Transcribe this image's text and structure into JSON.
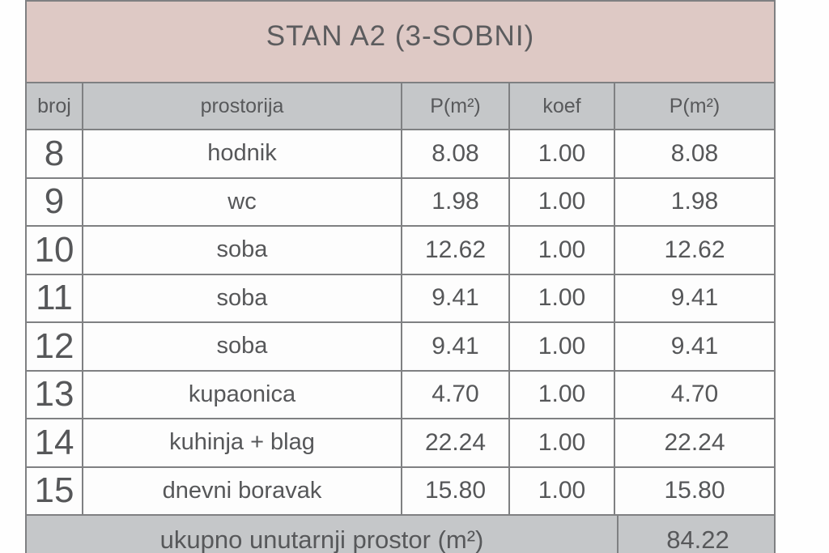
{
  "title": "STAN A2 (3-SOBNI)",
  "columns": [
    "broj",
    "prostorija",
    "P(m²)",
    "koef",
    "P(m²)"
  ],
  "rows": [
    [
      "8",
      "hodnik",
      "8.08",
      "1.00",
      "8.08"
    ],
    [
      "9",
      "wc",
      "1.98",
      "1.00",
      "1.98"
    ],
    [
      "10",
      "soba",
      "12.62",
      "1.00",
      "12.62"
    ],
    [
      "11",
      "soba",
      "9.41",
      "1.00",
      "9.41"
    ],
    [
      "12",
      "soba",
      "9.41",
      "1.00",
      "9.41"
    ],
    [
      "13",
      "kupaonica",
      "4.70",
      "1.00",
      "4.70"
    ],
    [
      "14",
      "kuhinja + blag",
      "22.24",
      "1.00",
      "22.24"
    ],
    [
      "15",
      "dnevni boravak",
      "15.80",
      "1.00",
      "15.80"
    ]
  ],
  "footer": {
    "label": "ukupno unutarnji prostor (m²)",
    "value": "84.22"
  },
  "colors": {
    "title_bg": "#dec9c5",
    "header_bg": "#c5c7c9",
    "footer_bg": "#c5c7c9",
    "text": "#565759",
    "border": "#7f8082"
  }
}
